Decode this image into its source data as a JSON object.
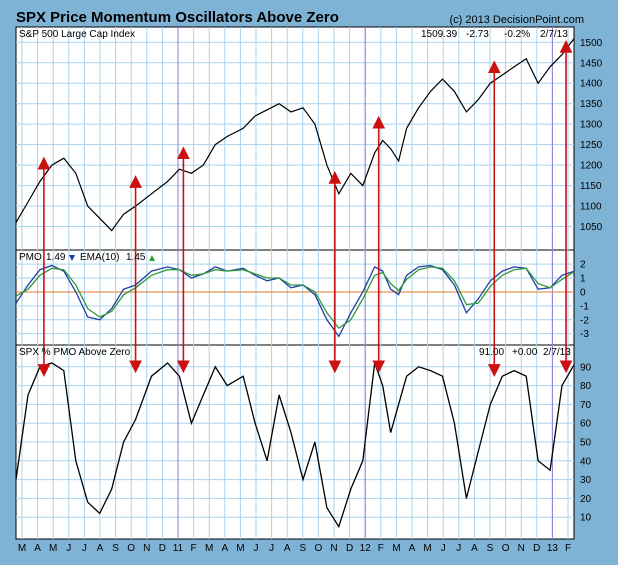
{
  "header": {
    "title": "SPX Price Momentum Oscillators Above Zero",
    "copyright": "(c) 2013 DecisionPoint.com"
  },
  "colors": {
    "background": "#7fb3d6",
    "panel": "#ffffff",
    "grid": "#a9d2ec",
    "price_line": "#000000",
    "pmo_line": "#1f3fa8",
    "ema_line": "#2e9a3a",
    "zero_line": "#e07b2a",
    "arrow": "#cc1111",
    "year_line": "#8f7fd6"
  },
  "chart_data": [
    {
      "type": "line",
      "name": "price-panel",
      "title": "S&P 500 Large Cap Index",
      "readout": {
        "value": "1509.39",
        "change": "-2.73",
        "pct": "-0.2%",
        "date": "2/7/13"
      },
      "ylim": [
        1000,
        1530
      ],
      "yticks": [
        1050,
        1100,
        1150,
        1200,
        1250,
        1300,
        1350,
        1400,
        1450,
        1500
      ],
      "series": [
        {
          "x": [
            0,
            3,
            6,
            9,
            12,
            15,
            18,
            21,
            24,
            27,
            30,
            34,
            38,
            41,
            44,
            47,
            50,
            53,
            57,
            60,
            63,
            66,
            69,
            72,
            75,
            78,
            81,
            84,
            87,
            90,
            92,
            94,
            96,
            98,
            101,
            104,
            107,
            110,
            113,
            116,
            119,
            122,
            125,
            128,
            131,
            134,
            137,
            140
          ],
          "values": [
            1060,
            1110,
            1160,
            1200,
            1217,
            1180,
            1100,
            1070,
            1040,
            1080,
            1100,
            1130,
            1160,
            1190,
            1180,
            1200,
            1250,
            1270,
            1290,
            1320,
            1335,
            1350,
            1330,
            1340,
            1300,
            1200,
            1130,
            1180,
            1150,
            1230,
            1260,
            1240,
            1210,
            1290,
            1340,
            1380,
            1410,
            1380,
            1330,
            1360,
            1400,
            1420,
            1440,
            1460,
            1400,
            1440,
            1470,
            1509
          ]
        }
      ]
    },
    {
      "type": "line",
      "name": "pmo-panel",
      "title": "PMO",
      "legend": {
        "pmo": "PMO",
        "pmo_value": "1.49",
        "ema": "EMA(10)",
        "ema_value": "1.45"
      },
      "ylim": [
        -3.6,
        2.8
      ],
      "yticks": [
        -3,
        -2,
        -1,
        0,
        1,
        2
      ],
      "series": [
        {
          "name": "PMO",
          "x": [
            0,
            3,
            6,
            9,
            12,
            15,
            18,
            21,
            24,
            27,
            30,
            34,
            38,
            41,
            44,
            47,
            50,
            53,
            57,
            60,
            63,
            66,
            69,
            72,
            75,
            78,
            81,
            84,
            87,
            90,
            92,
            94,
            96,
            98,
            101,
            104,
            107,
            110,
            113,
            116,
            119,
            122,
            125,
            128,
            131,
            134,
            137,
            140
          ],
          "values": [
            -0.8,
            0.5,
            1.6,
            1.9,
            1.5,
            0.0,
            -1.8,
            -2.0,
            -1.2,
            0.2,
            0.5,
            1.5,
            1.8,
            1.6,
            1.0,
            1.3,
            1.8,
            1.5,
            1.7,
            1.2,
            0.8,
            1.0,
            0.3,
            0.5,
            -0.2,
            -2.0,
            -3.2,
            -1.5,
            0.0,
            1.8,
            1.5,
            0.2,
            -0.2,
            1.2,
            1.8,
            1.9,
            1.6,
            0.5,
            -1.5,
            -0.5,
            0.8,
            1.5,
            1.8,
            1.7,
            0.2,
            0.3,
            1.2,
            1.49
          ]
        },
        {
          "name": "EMA(10)",
          "x": [
            0,
            3,
            6,
            9,
            12,
            15,
            18,
            21,
            24,
            27,
            30,
            34,
            38,
            41,
            44,
            47,
            50,
            53,
            57,
            60,
            63,
            66,
            69,
            72,
            75,
            78,
            81,
            84,
            87,
            90,
            92,
            94,
            96,
            98,
            101,
            104,
            107,
            110,
            113,
            116,
            119,
            122,
            125,
            128,
            131,
            134,
            137,
            140
          ],
          "values": [
            -0.3,
            0.2,
            1.2,
            1.7,
            1.6,
            0.5,
            -1.2,
            -1.8,
            -1.4,
            -0.2,
            0.3,
            1.2,
            1.6,
            1.6,
            1.2,
            1.3,
            1.6,
            1.5,
            1.6,
            1.3,
            1.0,
            1.0,
            0.5,
            0.5,
            0.0,
            -1.5,
            -2.6,
            -2.0,
            -0.5,
            1.2,
            1.4,
            0.6,
            0.1,
            0.9,
            1.6,
            1.8,
            1.7,
            0.8,
            -0.9,
            -0.8,
            0.4,
            1.2,
            1.6,
            1.7,
            0.6,
            0.3,
            0.9,
            1.45
          ]
        }
      ]
    },
    {
      "type": "line",
      "name": "pct-panel",
      "title": "SPX % PMO Above Zero",
      "readout": {
        "value": "91.00",
        "change": "+0.00",
        "date": "2/7/13"
      },
      "ylim": [
        0,
        100
      ],
      "yticks": [
        10,
        20,
        30,
        40,
        50,
        60,
        70,
        80,
        90
      ],
      "series": [
        {
          "x": [
            0,
            3,
            6,
            9,
            12,
            15,
            18,
            21,
            24,
            27,
            30,
            34,
            38,
            41,
            44,
            47,
            50,
            53,
            57,
            60,
            63,
            66,
            69,
            72,
            75,
            78,
            81,
            84,
            87,
            90,
            92,
            94,
            96,
            98,
            101,
            104,
            107,
            110,
            113,
            116,
            119,
            122,
            125,
            128,
            131,
            134,
            137,
            140
          ],
          "values": [
            30,
            75,
            90,
            92,
            88,
            40,
            18,
            12,
            25,
            50,
            62,
            85,
            92,
            85,
            60,
            75,
            90,
            80,
            85,
            60,
            40,
            75,
            55,
            30,
            50,
            15,
            5,
            25,
            40,
            92,
            80,
            55,
            70,
            85,
            90,
            88,
            85,
            60,
            20,
            45,
            70,
            85,
            88,
            85,
            40,
            35,
            80,
            91
          ]
        }
      ]
    }
  ],
  "x_axis": {
    "labels": [
      "M",
      "A",
      "M",
      "J",
      "J",
      "A",
      "S",
      "O",
      "N",
      "D",
      "11",
      "F",
      "M",
      "A",
      "M",
      "J",
      "J",
      "A",
      "S",
      "O",
      "N",
      "D",
      "12",
      "F",
      "M",
      "A",
      "M",
      "J",
      "J",
      "A",
      "S",
      "O",
      "N",
      "D",
      "13",
      "F"
    ],
    "year_markers": [
      "11",
      "12",
      "13"
    ]
  },
  "signal_arrows": [
    {
      "from_label": "M",
      "x": 7,
      "price_top": 1205,
      "pct_bottom": 88
    },
    {
      "from_label": "N",
      "x": 30,
      "price_top": 1160,
      "pct_bottom": 90
    },
    {
      "from_label": "F",
      "x": 42,
      "price_top": 1230,
      "pct_bottom": 90
    },
    {
      "from_label": "N",
      "x": 80,
      "price_top": 1170,
      "pct_bottom": 90
    },
    {
      "from_label": "F",
      "x": 91,
      "price_top": 1305,
      "pct_bottom": 90
    },
    {
      "from_label": "O",
      "x": 120,
      "price_top": 1440,
      "pct_bottom": 88
    },
    {
      "from_label": "F",
      "x": 138,
      "price_top": 1490,
      "pct_bottom": 90
    }
  ]
}
